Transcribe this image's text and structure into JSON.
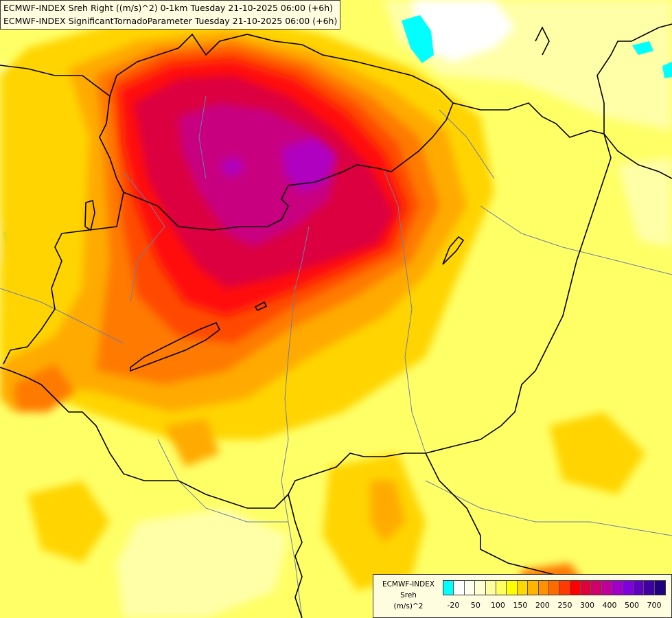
{
  "title": {
    "line1": "ECMWF-INDEX Sreh Right ((m/s)^2) 0-1km Tuesday 21-10-2025 06:00 (+6h)",
    "line2": "ECMWF-INDEX SignificantTornadoParameter Tuesday 21-10-2025 06:00 (+6h)"
  },
  "legend": {
    "line1": "ECMWF-INDEX",
    "line2": "Sreh",
    "line3": "(m/s)^2",
    "colors": [
      "#00ffff",
      "#ffffff",
      "#fffff0",
      "#ffffd0",
      "#ffffa0",
      "#ffff60",
      "#ffff00",
      "#ffd800",
      "#ffb400",
      "#ff9000",
      "#ff6a00",
      "#ff3a00",
      "#ff0000",
      "#e0003a",
      "#d0006a",
      "#c0009a",
      "#a000c8",
      "#8000e0",
      "#6000c0",
      "#4000a0",
      "#200080"
    ],
    "tick_labels": [
      "-20",
      "50",
      "100",
      "150",
      "200",
      "250",
      "300",
      "400",
      "500",
      "700"
    ]
  },
  "map_colors": {
    "background": "#ffff66",
    "pale": "#ffffa8",
    "yellow": "#ffff00",
    "gold": "#ffd400",
    "orange": "#ffaa00",
    "dark_orange": "#ff7a00",
    "red_orange": "#ff4a00",
    "red": "#ff0a0a",
    "crimson": "#dc0040",
    "magenta": "#c80080",
    "purple": "#b000c0",
    "cyan": "#00ffff",
    "white": "#ffffff",
    "border_line": "#000000",
    "river_line": "#6b7fa8"
  }
}
